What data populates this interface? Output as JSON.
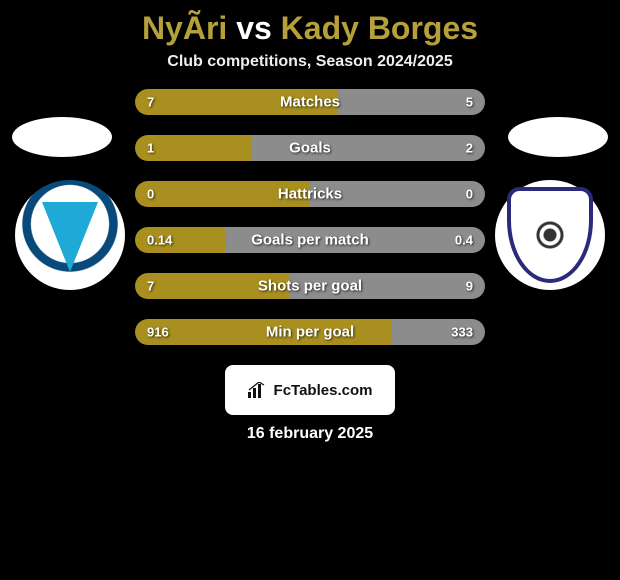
{
  "title": {
    "player1": "NyÃ­ri",
    "player2": "Kady Borges",
    "color": "#b6a03a"
  },
  "subtitle": "Club competitions, Season 2024/2025",
  "date": "16 february 2025",
  "branding": "FcTables.com",
  "colors": {
    "p1_segment": "#a88f1f",
    "p2_segment": "#8c8c8c",
    "title_accent": "#b6a03a",
    "background": "#000000"
  },
  "clubs": {
    "left": {
      "name": "ZTE",
      "primary": "#1fa9d6",
      "secondary": "#0a4a7a"
    },
    "right": {
      "name": "Qarabag",
      "primary": "#2b2a7a",
      "secondary": "#ffffff"
    }
  },
  "stats": [
    {
      "label": "Matches",
      "p1": "7",
      "p2": "5",
      "p1_pct": 58,
      "p2_pct": 42
    },
    {
      "label": "Goals",
      "p1": "1",
      "p2": "2",
      "p1_pct": 33,
      "p2_pct": 67
    },
    {
      "label": "Hattricks",
      "p1": "0",
      "p2": "0",
      "p1_pct": 50,
      "p2_pct": 50
    },
    {
      "label": "Goals per match",
      "p1": "0.14",
      "p2": "0.4",
      "p1_pct": 26,
      "p2_pct": 74
    },
    {
      "label": "Shots per goal",
      "p1": "7",
      "p2": "9",
      "p1_pct": 44,
      "p2_pct": 56
    },
    {
      "label": "Min per goal",
      "p1": "916",
      "p2": "333",
      "p1_pct": 73,
      "p2_pct": 27
    }
  ]
}
